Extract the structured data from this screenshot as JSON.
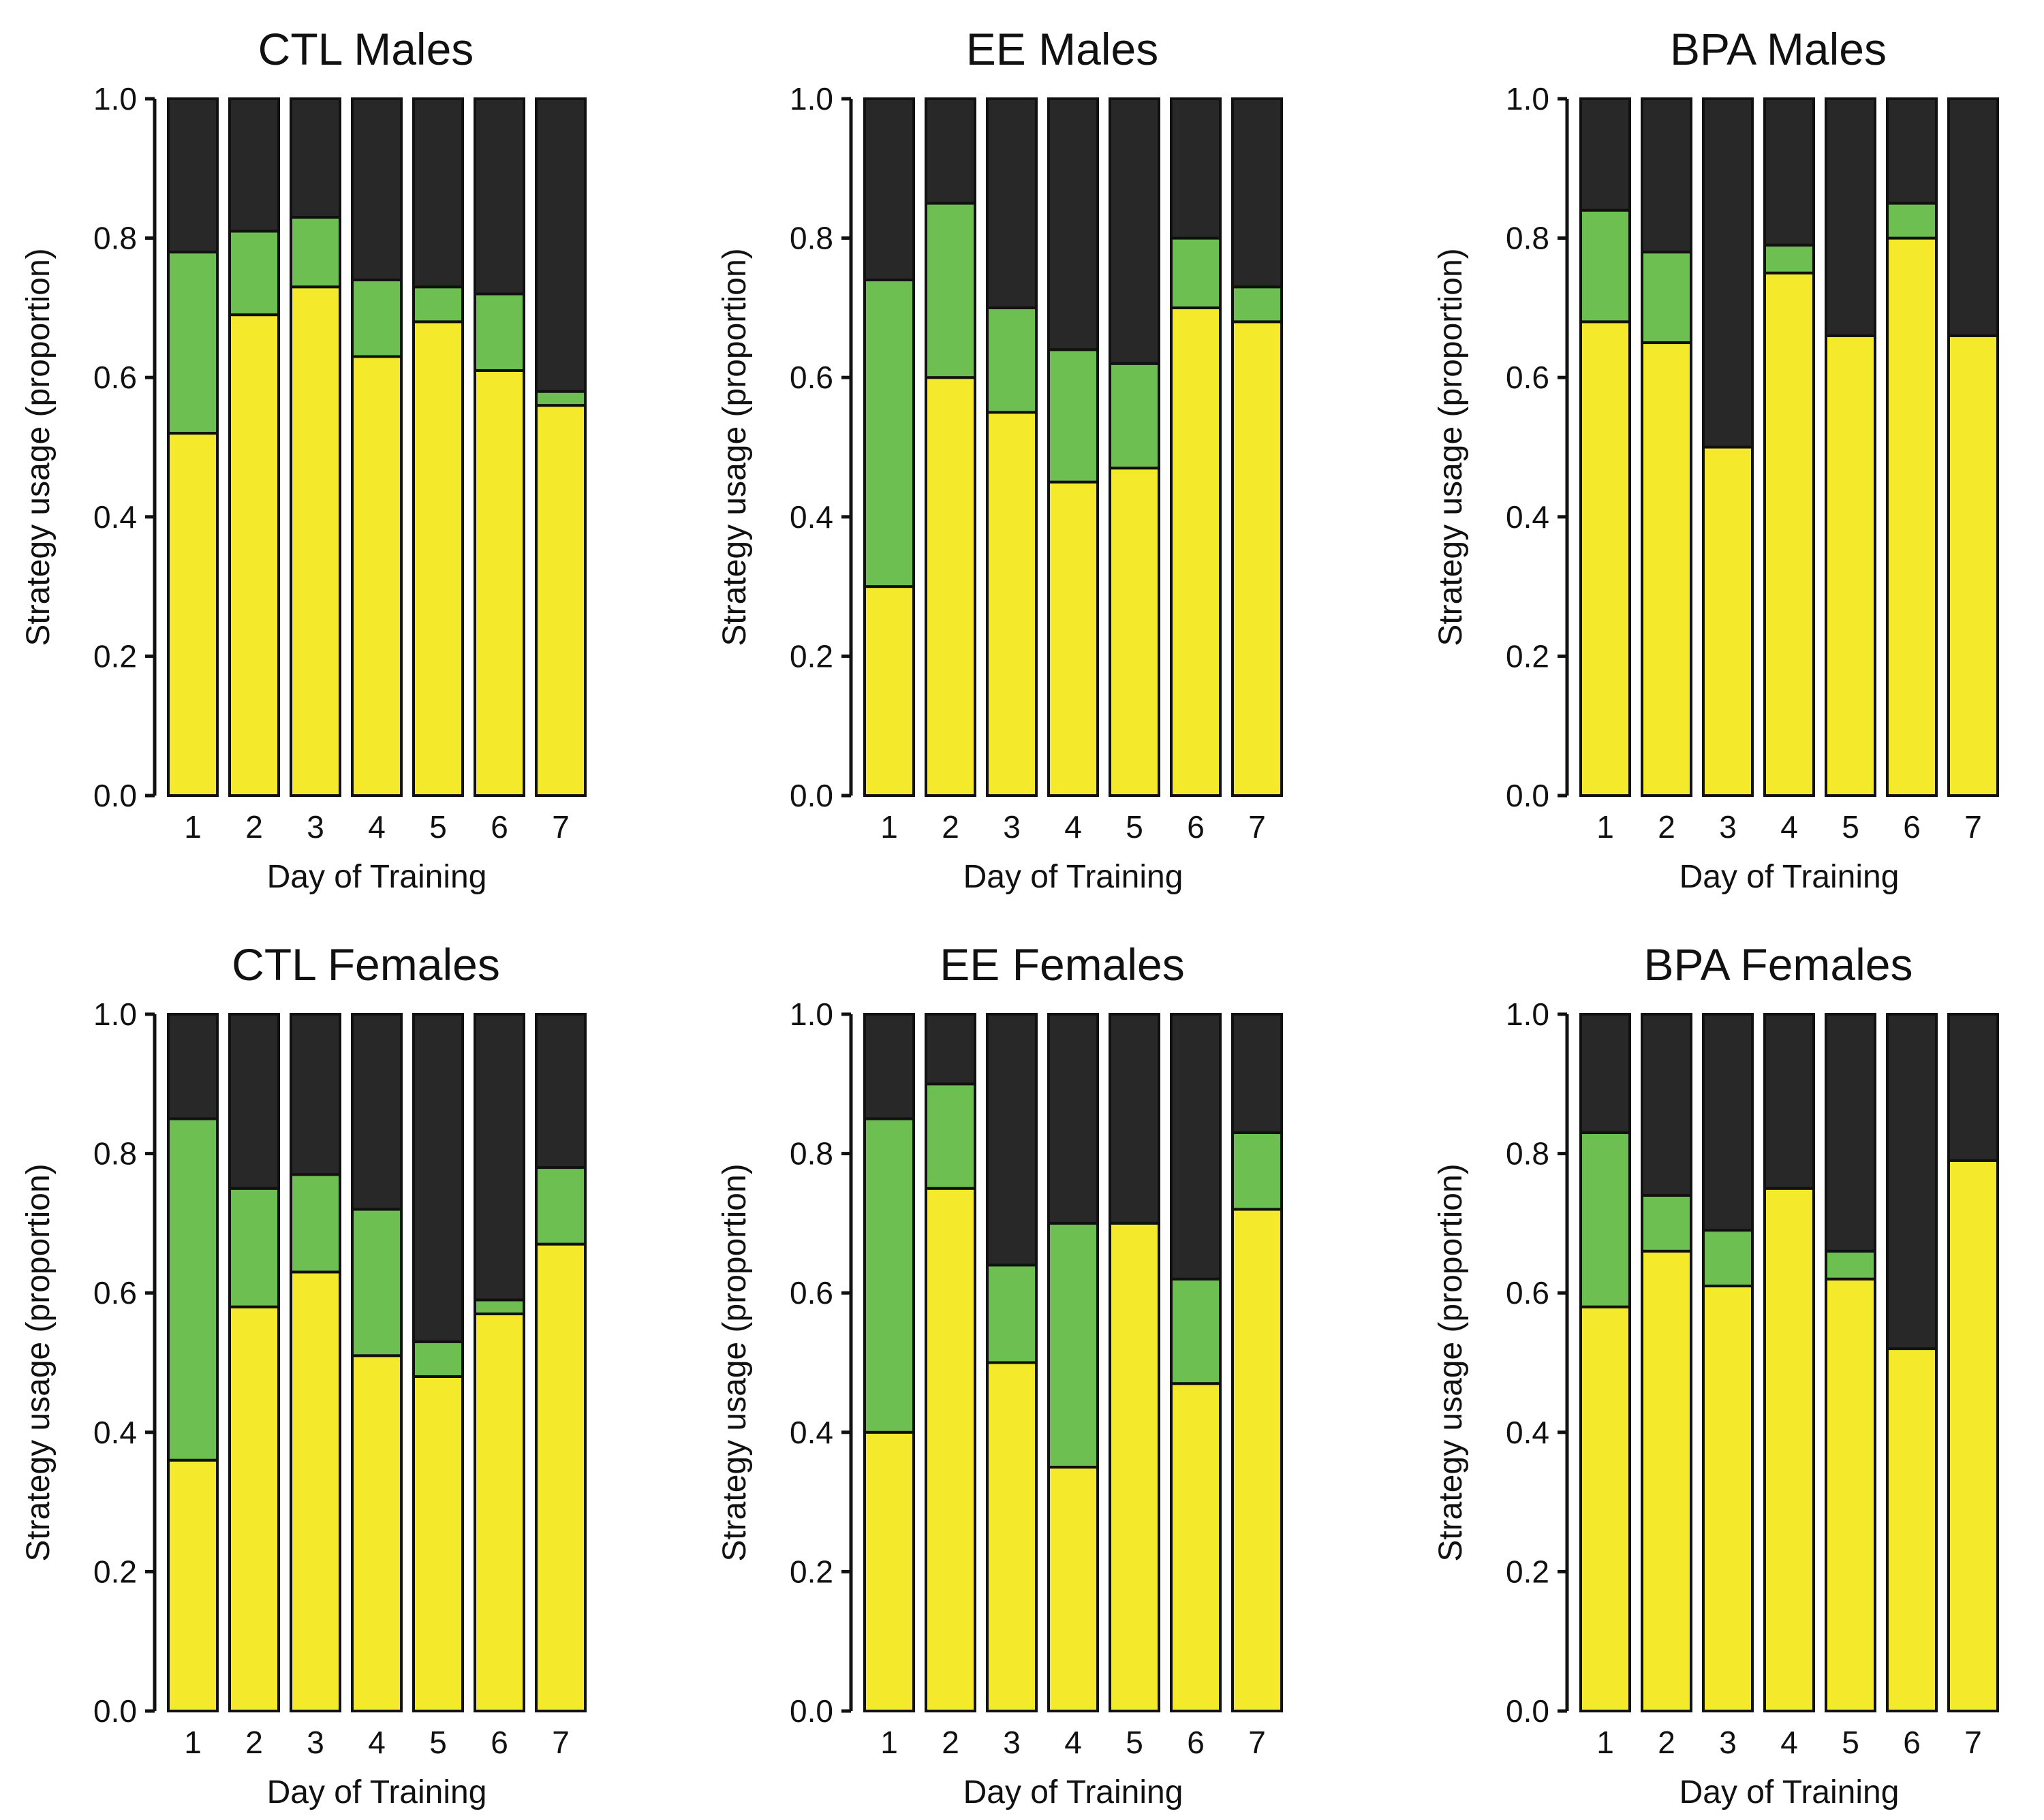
{
  "colors": {
    "yellow": "#f5e92c",
    "green": "#6cbf50",
    "dark": "#282828",
    "outline": "#111111"
  },
  "chart_data": [
    {
      "type": "bar",
      "stacked": true,
      "title": "CTL Males",
      "xlabel": "Day of Training",
      "ylabel": "Strategy usage (proportion)",
      "ylim": [
        0,
        1
      ],
      "yticks": [
        "0.0",
        "0.2",
        "0.4",
        "0.6",
        "0.8",
        "1.0"
      ],
      "categories": [
        "1",
        "2",
        "3",
        "4",
        "5",
        "6",
        "7"
      ],
      "series": [
        {
          "name": "yellow",
          "color": "#f5e92c",
          "values": [
            0.52,
            0.69,
            0.73,
            0.63,
            0.68,
            0.61,
            0.56
          ]
        },
        {
          "name": "green",
          "color": "#6cbf50",
          "values": [
            0.26,
            0.12,
            0.1,
            0.11,
            0.05,
            0.11,
            0.02
          ]
        },
        {
          "name": "dark",
          "color": "#282828",
          "values": [
            0.22,
            0.19,
            0.17,
            0.26,
            0.27,
            0.28,
            0.42
          ]
        }
      ]
    },
    {
      "type": "bar",
      "stacked": true,
      "title": "EE Males",
      "xlabel": "Day of Training",
      "ylabel": "Strategy usage (proportion)",
      "ylim": [
        0,
        1
      ],
      "yticks": [
        "0.0",
        "0.2",
        "0.4",
        "0.6",
        "0.8",
        "1.0"
      ],
      "categories": [
        "1",
        "2",
        "3",
        "4",
        "5",
        "6",
        "7"
      ],
      "series": [
        {
          "name": "yellow",
          "color": "#f5e92c",
          "values": [
            0.3,
            0.6,
            0.55,
            0.45,
            0.47,
            0.7,
            0.68
          ]
        },
        {
          "name": "green",
          "color": "#6cbf50",
          "values": [
            0.44,
            0.25,
            0.15,
            0.19,
            0.15,
            0.1,
            0.05
          ]
        },
        {
          "name": "dark",
          "color": "#282828",
          "values": [
            0.26,
            0.15,
            0.3,
            0.36,
            0.38,
            0.2,
            0.27
          ]
        }
      ]
    },
    {
      "type": "bar",
      "stacked": true,
      "title": "BPA Males",
      "xlabel": "Day of Training",
      "ylabel": "Strategy usage (proportion)",
      "ylim": [
        0,
        1
      ],
      "yticks": [
        "0.0",
        "0.2",
        "0.4",
        "0.6",
        "0.8",
        "1.0"
      ],
      "categories": [
        "1",
        "2",
        "3",
        "4",
        "5",
        "6",
        "7"
      ],
      "series": [
        {
          "name": "yellow",
          "color": "#f5e92c",
          "values": [
            0.68,
            0.65,
            0.5,
            0.75,
            0.66,
            0.8,
            0.66
          ]
        },
        {
          "name": "green",
          "color": "#6cbf50",
          "values": [
            0.16,
            0.13,
            0.0,
            0.04,
            0.0,
            0.05,
            0.0
          ]
        },
        {
          "name": "dark",
          "color": "#282828",
          "values": [
            0.16,
            0.22,
            0.5,
            0.21,
            0.34,
            0.15,
            0.34
          ]
        }
      ]
    },
    {
      "type": "bar",
      "stacked": true,
      "title": "CTL Females",
      "xlabel": "Day of Training",
      "ylabel": "Strategy usage (proportion)",
      "ylim": [
        0,
        1
      ],
      "yticks": [
        "0.0",
        "0.2",
        "0.4",
        "0.6",
        "0.8",
        "1.0"
      ],
      "categories": [
        "1",
        "2",
        "3",
        "4",
        "5",
        "6",
        "7"
      ],
      "series": [
        {
          "name": "yellow",
          "color": "#f5e92c",
          "values": [
            0.36,
            0.58,
            0.63,
            0.51,
            0.48,
            0.57,
            0.67
          ]
        },
        {
          "name": "green",
          "color": "#6cbf50",
          "values": [
            0.49,
            0.17,
            0.14,
            0.21,
            0.05,
            0.02,
            0.11
          ]
        },
        {
          "name": "dark",
          "color": "#282828",
          "values": [
            0.15,
            0.25,
            0.23,
            0.28,
            0.47,
            0.41,
            0.22
          ]
        }
      ]
    },
    {
      "type": "bar",
      "stacked": true,
      "title": "EE Females",
      "xlabel": "Day of Training",
      "ylabel": "Strategy usage (proportion)",
      "ylim": [
        0,
        1
      ],
      "yticks": [
        "0.0",
        "0.2",
        "0.4",
        "0.6",
        "0.8",
        "1.0"
      ],
      "categories": [
        "1",
        "2",
        "3",
        "4",
        "5",
        "6",
        "7"
      ],
      "series": [
        {
          "name": "yellow",
          "color": "#f5e92c",
          "values": [
            0.4,
            0.75,
            0.5,
            0.35,
            0.7,
            0.47,
            0.72
          ]
        },
        {
          "name": "green",
          "color": "#6cbf50",
          "values": [
            0.45,
            0.15,
            0.14,
            0.35,
            0.0,
            0.15,
            0.11
          ]
        },
        {
          "name": "dark",
          "color": "#282828",
          "values": [
            0.15,
            0.1,
            0.36,
            0.3,
            0.3,
            0.38,
            0.17
          ]
        }
      ]
    },
    {
      "type": "bar",
      "stacked": true,
      "title": "BPA Females",
      "xlabel": "Day of Training",
      "ylabel": "Strategy usage (proportion)",
      "ylim": [
        0,
        1
      ],
      "yticks": [
        "0.0",
        "0.2",
        "0.4",
        "0.6",
        "0.8",
        "1.0"
      ],
      "categories": [
        "1",
        "2",
        "3",
        "4",
        "5",
        "6",
        "7"
      ],
      "series": [
        {
          "name": "yellow",
          "color": "#f5e92c",
          "values": [
            0.58,
            0.66,
            0.61,
            0.75,
            0.62,
            0.52,
            0.79
          ]
        },
        {
          "name": "green",
          "color": "#6cbf50",
          "values": [
            0.25,
            0.08,
            0.08,
            0.0,
            0.04,
            0.0,
            0.0
          ]
        },
        {
          "name": "dark",
          "color": "#282828",
          "values": [
            0.17,
            0.26,
            0.31,
            0.25,
            0.34,
            0.48,
            0.21
          ]
        }
      ]
    }
  ]
}
